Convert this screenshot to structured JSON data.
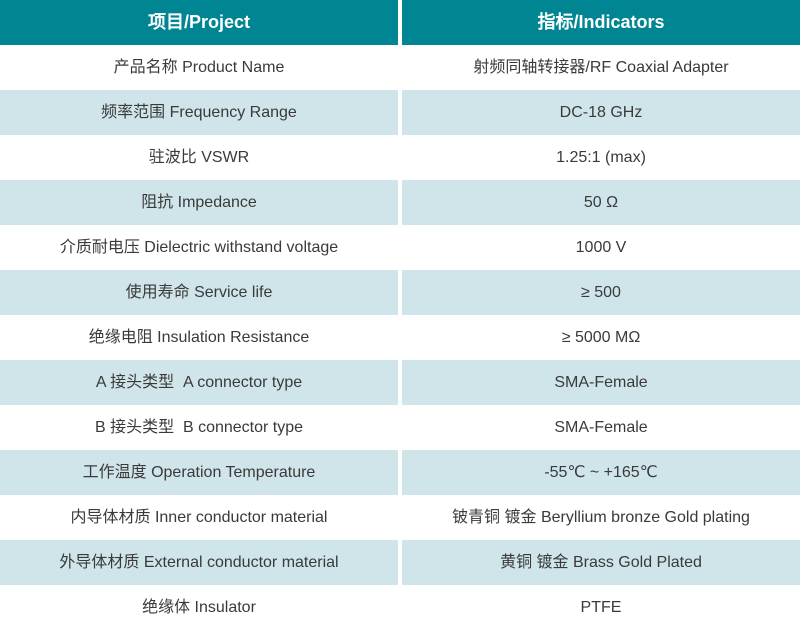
{
  "table": {
    "header": {
      "project": "项目/Project",
      "indicators": "指标/Indicators"
    },
    "rows": [
      {
        "label": "产品名称 Product Name",
        "value": "射频同轴转接器/RF Coaxial Adapter"
      },
      {
        "label": "频率范围 Frequency Range",
        "value": "DC-18 GHz"
      },
      {
        "label": "驻波比 VSWR",
        "value": "1.25:1 (max)"
      },
      {
        "label": "阻抗 Impedance",
        "value": "50 Ω"
      },
      {
        "label": "介质耐电压 Dielectric withstand voltage",
        "value": "1000 V"
      },
      {
        "label": "使用寿命 Service life",
        "value": "≥ 500"
      },
      {
        "label": "绝缘电阻 Insulation Resistance",
        "value": "≥ 5000 MΩ"
      },
      {
        "label": "A 接头类型  A connector type",
        "value": "SMA-Female"
      },
      {
        "label": "B 接头类型  B connector type",
        "value": "SMA-Female"
      },
      {
        "label": "工作温度 Operation Temperature",
        "value": "-55℃ ~ +165℃"
      },
      {
        "label": "内导体材质 Inner conductor material",
        "value": "铍青铜 镀金 Beryllium bronze Gold plating"
      },
      {
        "label": "外导体材质 External conductor material",
        "value": "黄铜 镀金 Brass Gold Plated"
      },
      {
        "label": "绝缘体 Insulator",
        "value": "PTFE"
      }
    ],
    "colors": {
      "header_bg": "#008593",
      "alt_row_bg": "#d0e5e9",
      "text": "#3a3a3a",
      "header_text": "#ffffff"
    }
  }
}
